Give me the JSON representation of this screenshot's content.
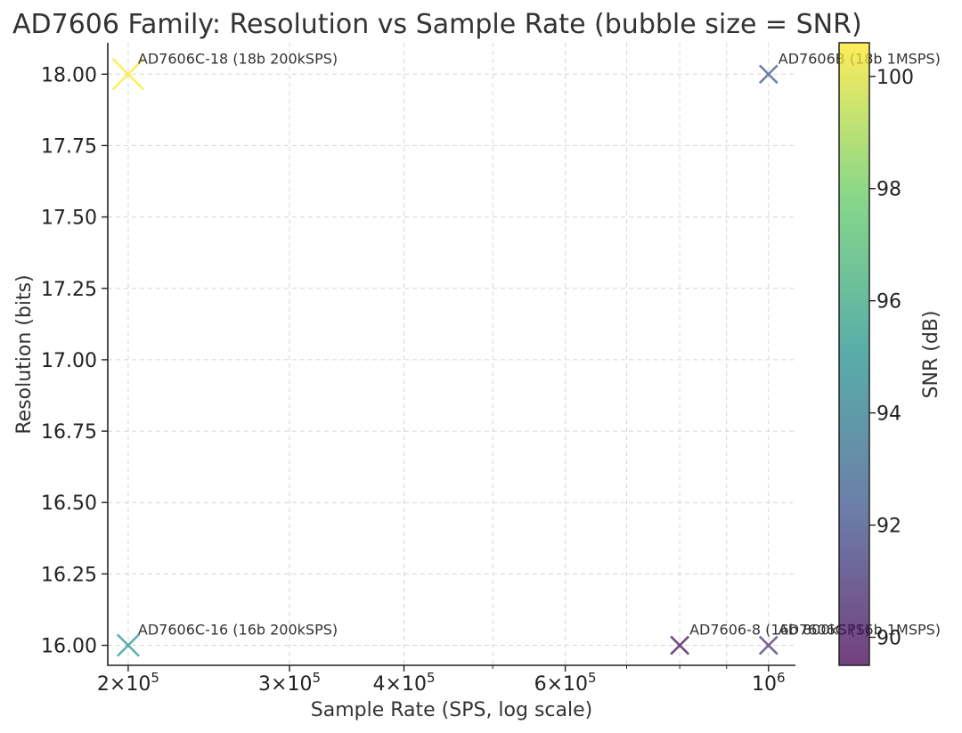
{
  "chart_data": {
    "type": "scatter",
    "title": "AD7606 Family: Resolution vs Sample Rate (bubble size = SNR)",
    "xlabel": "Sample Rate (SPS, log scale)",
    "ylabel": "Resolution (bits)",
    "xscale": "log",
    "xlim": [
      190000,
      1070000
    ],
    "ylim": [
      15.93,
      18.11
    ],
    "grid": true,
    "x_ticks": [
      {
        "value": 200000,
        "base": "2×10",
        "exp": "5"
      },
      {
        "value": 300000,
        "base": "3×10",
        "exp": "5"
      },
      {
        "value": 400000,
        "base": "4×10",
        "exp": "5"
      },
      {
        "value": 600000,
        "base": "6×10",
        "exp": "5"
      },
      {
        "value": 1000000,
        "base": "10",
        "exp": "6"
      }
    ],
    "x_minor_ticks": [
      500000,
      700000,
      800000,
      900000
    ],
    "y_ticks": [
      "16.00",
      "16.25",
      "16.50",
      "16.75",
      "17.00",
      "17.25",
      "17.50",
      "17.75",
      "18.00"
    ],
    "colorbar": {
      "label": "SNR (dB)",
      "range": [
        89.5,
        100.6
      ],
      "ticks": [
        "90",
        "92",
        "94",
        "96",
        "98",
        "100"
      ],
      "colormap": [
        "#440154",
        "#3b528b",
        "#21918c",
        "#5ec962",
        "#fde725"
      ]
    },
    "points": [
      {
        "label": "AD7606C-18 (18b 200kSPS)",
        "x": 200000,
        "y": 18.0,
        "snr": 100.5,
        "color": "#fde725"
      },
      {
        "label": "AD7606B (18b 1MSPS)",
        "x": 1000000,
        "y": 18.0,
        "snr": 92.8,
        "color": "#3b528b"
      },
      {
        "label": "AD7606C-16 (16b 200kSPS)",
        "x": 200000,
        "y": 16.0,
        "snr": 95.5,
        "color": "#21918c"
      },
      {
        "label": "AD7606-8 (16b 800kSPS)",
        "x": 800000,
        "y": 16.0,
        "snr": 90.0,
        "color": "#440154"
      },
      {
        "label": "AD7606C (16b 1MSPS)",
        "x": 1000000,
        "y": 16.0,
        "snr": 92.0,
        "color": "#472d7b"
      }
    ]
  }
}
